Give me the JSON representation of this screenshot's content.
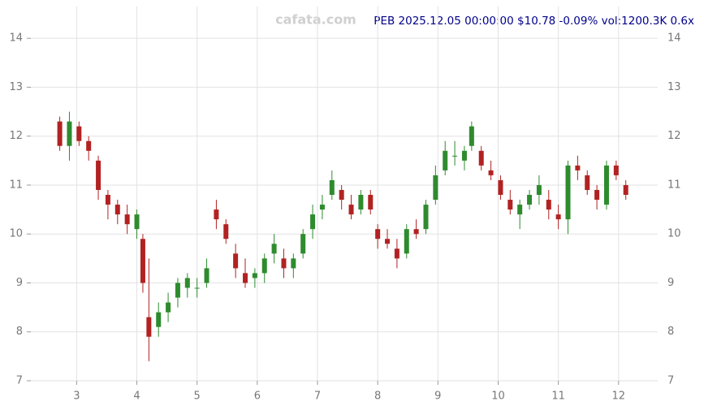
{
  "chart_data": {
    "type": "candlestick",
    "title": "PEB 2025.12.05 00:00:00 $10.78 -0.09% vol:1200.3K 0.6x",
    "watermark": "cafata.com",
    "up_color": "#2e8b2e",
    "down_color": "#b22222",
    "x": [
      2.72,
      2.88,
      3.04,
      3.2,
      3.36,
      3.52,
      3.68,
      3.84,
      4.0,
      4.1,
      4.2,
      4.36,
      4.52,
      4.68,
      4.84,
      5.0,
      5.16,
      5.32,
      5.48,
      5.64,
      5.8,
      5.96,
      6.12,
      6.28,
      6.44,
      6.6,
      6.76,
      6.92,
      7.08,
      7.24,
      7.4,
      7.56,
      7.72,
      7.88,
      8.0,
      8.16,
      8.32,
      8.48,
      8.64,
      8.8,
      8.96,
      9.12,
      9.28,
      9.44,
      9.56,
      9.72,
      9.88,
      10.04,
      10.2,
      10.36,
      10.52,
      10.68,
      10.84,
      11.0,
      11.16,
      11.32,
      11.48,
      11.64,
      11.8,
      11.96,
      12.12
    ],
    "open": [
      12.3,
      11.8,
      12.2,
      11.9,
      11.5,
      10.8,
      10.6,
      10.4,
      10.1,
      9.9,
      8.3,
      8.1,
      8.4,
      8.7,
      8.9,
      8.9,
      9.0,
      10.5,
      10.2,
      9.6,
      9.2,
      9.1,
      9.2,
      9.6,
      9.5,
      9.3,
      9.6,
      10.1,
      10.5,
      10.8,
      10.9,
      10.6,
      10.5,
      10.8,
      10.1,
      9.9,
      9.7,
      9.6,
      10.1,
      10.1,
      10.7,
      11.3,
      11.6,
      11.5,
      11.8,
      11.7,
      11.3,
      11.1,
      10.7,
      10.4,
      10.6,
      10.8,
      10.7,
      10.4,
      10.3,
      11.4,
      11.2,
      10.9,
      10.6,
      11.4,
      11.0
    ],
    "high": [
      12.4,
      12.5,
      12.3,
      12.0,
      11.6,
      10.9,
      10.7,
      10.6,
      10.5,
      10.0,
      9.5,
      8.6,
      8.8,
      9.1,
      9.2,
      9.1,
      9.5,
      10.7,
      10.3,
      9.8,
      9.5,
      9.3,
      9.6,
      10.0,
      9.7,
      9.6,
      10.1,
      10.6,
      10.8,
      11.3,
      11.0,
      10.8,
      10.9,
      10.9,
      10.2,
      10.1,
      9.9,
      10.2,
      10.3,
      10.7,
      11.4,
      11.9,
      11.9,
      11.8,
      12.3,
      11.8,
      11.5,
      11.2,
      10.9,
      10.7,
      10.9,
      11.2,
      10.9,
      10.6,
      11.5,
      11.6,
      11.3,
      11.0,
      11.5,
      11.5,
      11.1
    ],
    "low": [
      11.7,
      11.5,
      11.8,
      11.5,
      10.7,
      10.3,
      10.2,
      10.0,
      9.9,
      8.8,
      7.4,
      7.9,
      8.2,
      8.5,
      8.7,
      8.7,
      8.9,
      10.1,
      9.8,
      9.1,
      8.9,
      8.9,
      9.0,
      9.4,
      9.1,
      9.1,
      9.5,
      9.9,
      10.3,
      10.7,
      10.5,
      10.3,
      10.4,
      10.4,
      9.7,
      9.7,
      9.3,
      9.5,
      9.9,
      10.0,
      10.6,
      11.2,
      11.4,
      11.3,
      11.7,
      11.3,
      11.1,
      10.7,
      10.4,
      10.1,
      10.5,
      10.6,
      10.3,
      10.1,
      10.0,
      11.1,
      10.8,
      10.5,
      10.5,
      11.1,
      10.7
    ],
    "close": [
      11.8,
      12.3,
      11.9,
      11.7,
      10.9,
      10.6,
      10.4,
      10.2,
      10.4,
      9.0,
      7.9,
      8.4,
      8.6,
      9.0,
      9.1,
      8.9,
      9.3,
      10.3,
      9.9,
      9.3,
      9.0,
      9.2,
      9.5,
      9.8,
      9.3,
      9.5,
      10.0,
      10.4,
      10.6,
      11.1,
      10.7,
      10.4,
      10.8,
      10.5,
      9.9,
      9.8,
      9.5,
      10.1,
      10.0,
      10.6,
      11.2,
      11.7,
      11.6,
      11.7,
      12.2,
      11.4,
      11.2,
      10.8,
      10.5,
      10.6,
      10.8,
      11.0,
      10.5,
      10.3,
      11.4,
      11.3,
      10.9,
      10.7,
      11.4,
      11.2,
      10.8
    ],
    "xlim": [
      2.24,
      12.65
    ],
    "xticks": [
      3,
      4,
      5,
      6,
      7,
      8,
      9,
      10,
      11,
      12
    ],
    "ylim": [
      7,
      14.65
    ],
    "yticks": [
      7,
      8,
      9,
      10,
      11,
      12,
      13,
      14
    ],
    "grid": true
  }
}
